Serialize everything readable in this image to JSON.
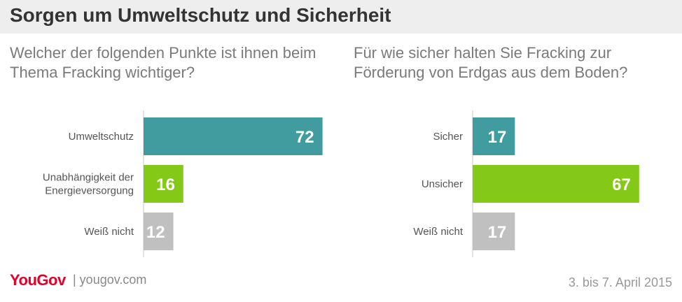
{
  "header": {
    "title": "Sorgen um Umweltschutz und Sicherheit"
  },
  "colors": {
    "teal": "#419c9f",
    "green": "#84c918",
    "grey": "#c0c0c0",
    "axis": "#c8c8c8"
  },
  "chart_data": [
    {
      "type": "bar",
      "orientation": "horizontal",
      "title": "Welcher der folgenden Punkte ist ihnen beim Thema Fracking wichtiger?",
      "categories": [
        "Umweltschutz",
        "Unabhängigkeit der Energieversorgung",
        "Weiß nicht"
      ],
      "category_lines": [
        [
          "Umweltschutz"
        ],
        [
          "Unabhängigkeit der",
          "Energieversorgung"
        ],
        [
          "Weiß nicht"
        ]
      ],
      "values": [
        72,
        16,
        12
      ],
      "value_labels": [
        "72",
        "16",
        "12"
      ],
      "bar_colors": [
        "#419c9f",
        "#84c918",
        "#c0c0c0"
      ],
      "xlim": [
        0,
        100
      ]
    },
    {
      "type": "bar",
      "orientation": "horizontal",
      "title": "Für wie sicher halten Sie Fracking zur Förderung von Erdgas aus dem Boden?",
      "categories": [
        "Sicher",
        "Unsicher",
        "Weiß nicht"
      ],
      "category_lines": [
        [
          "Sicher"
        ],
        [
          "Unsicher"
        ],
        [
          "Weiß nicht"
        ]
      ],
      "values": [
        17,
        67,
        17
      ],
      "value_labels": [
        "17",
        "67",
        "17"
      ],
      "bar_colors": [
        "#419c9f",
        "#84c918",
        "#c0c0c0"
      ],
      "xlim": [
        0,
        100
      ]
    }
  ],
  "footer": {
    "logo": "YouGov",
    "url": "| yougov.com",
    "date": "3. bis 7. April 2015"
  }
}
